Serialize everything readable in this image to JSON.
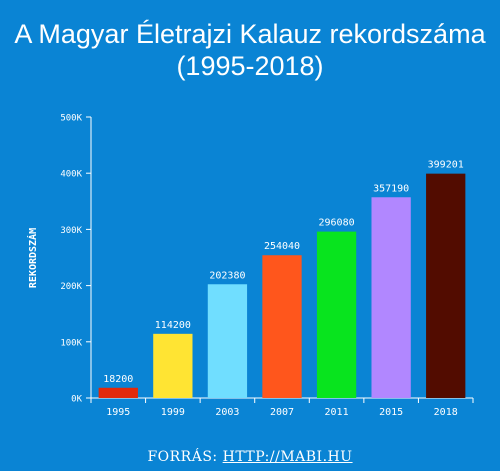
{
  "chart_data": {
    "type": "bar",
    "title_line1": "A Magyar Életrajzi Kalauz rekordszáma",
    "title_line2": "(1995-2018)",
    "ylabel": "REKORDSZÁM",
    "xlabel": "",
    "ylim": [
      0,
      500000
    ],
    "yticks": [
      0,
      100000,
      200000,
      300000,
      400000,
      500000
    ],
    "ytick_labels": [
      "0K",
      "100K",
      "200K",
      "300K",
      "400K",
      "500K"
    ],
    "grid": false,
    "categories": [
      "1995",
      "1999",
      "2003",
      "2007",
      "2011",
      "2015",
      "2018"
    ],
    "values": [
      18200,
      114200,
      202380,
      254040,
      296080,
      357190,
      399201
    ],
    "value_labels": [
      "18200",
      "114200",
      "202380",
      "254040",
      "296080",
      "357190",
      "399201"
    ],
    "colors": [
      "#e12a0c",
      "#ffe433",
      "#70deff",
      "#ff561c",
      "#08e41e",
      "#b187ff",
      "#520c00"
    ]
  },
  "source": {
    "label": "FORRÁS:",
    "link": "HTTP://MABI.HU"
  }
}
